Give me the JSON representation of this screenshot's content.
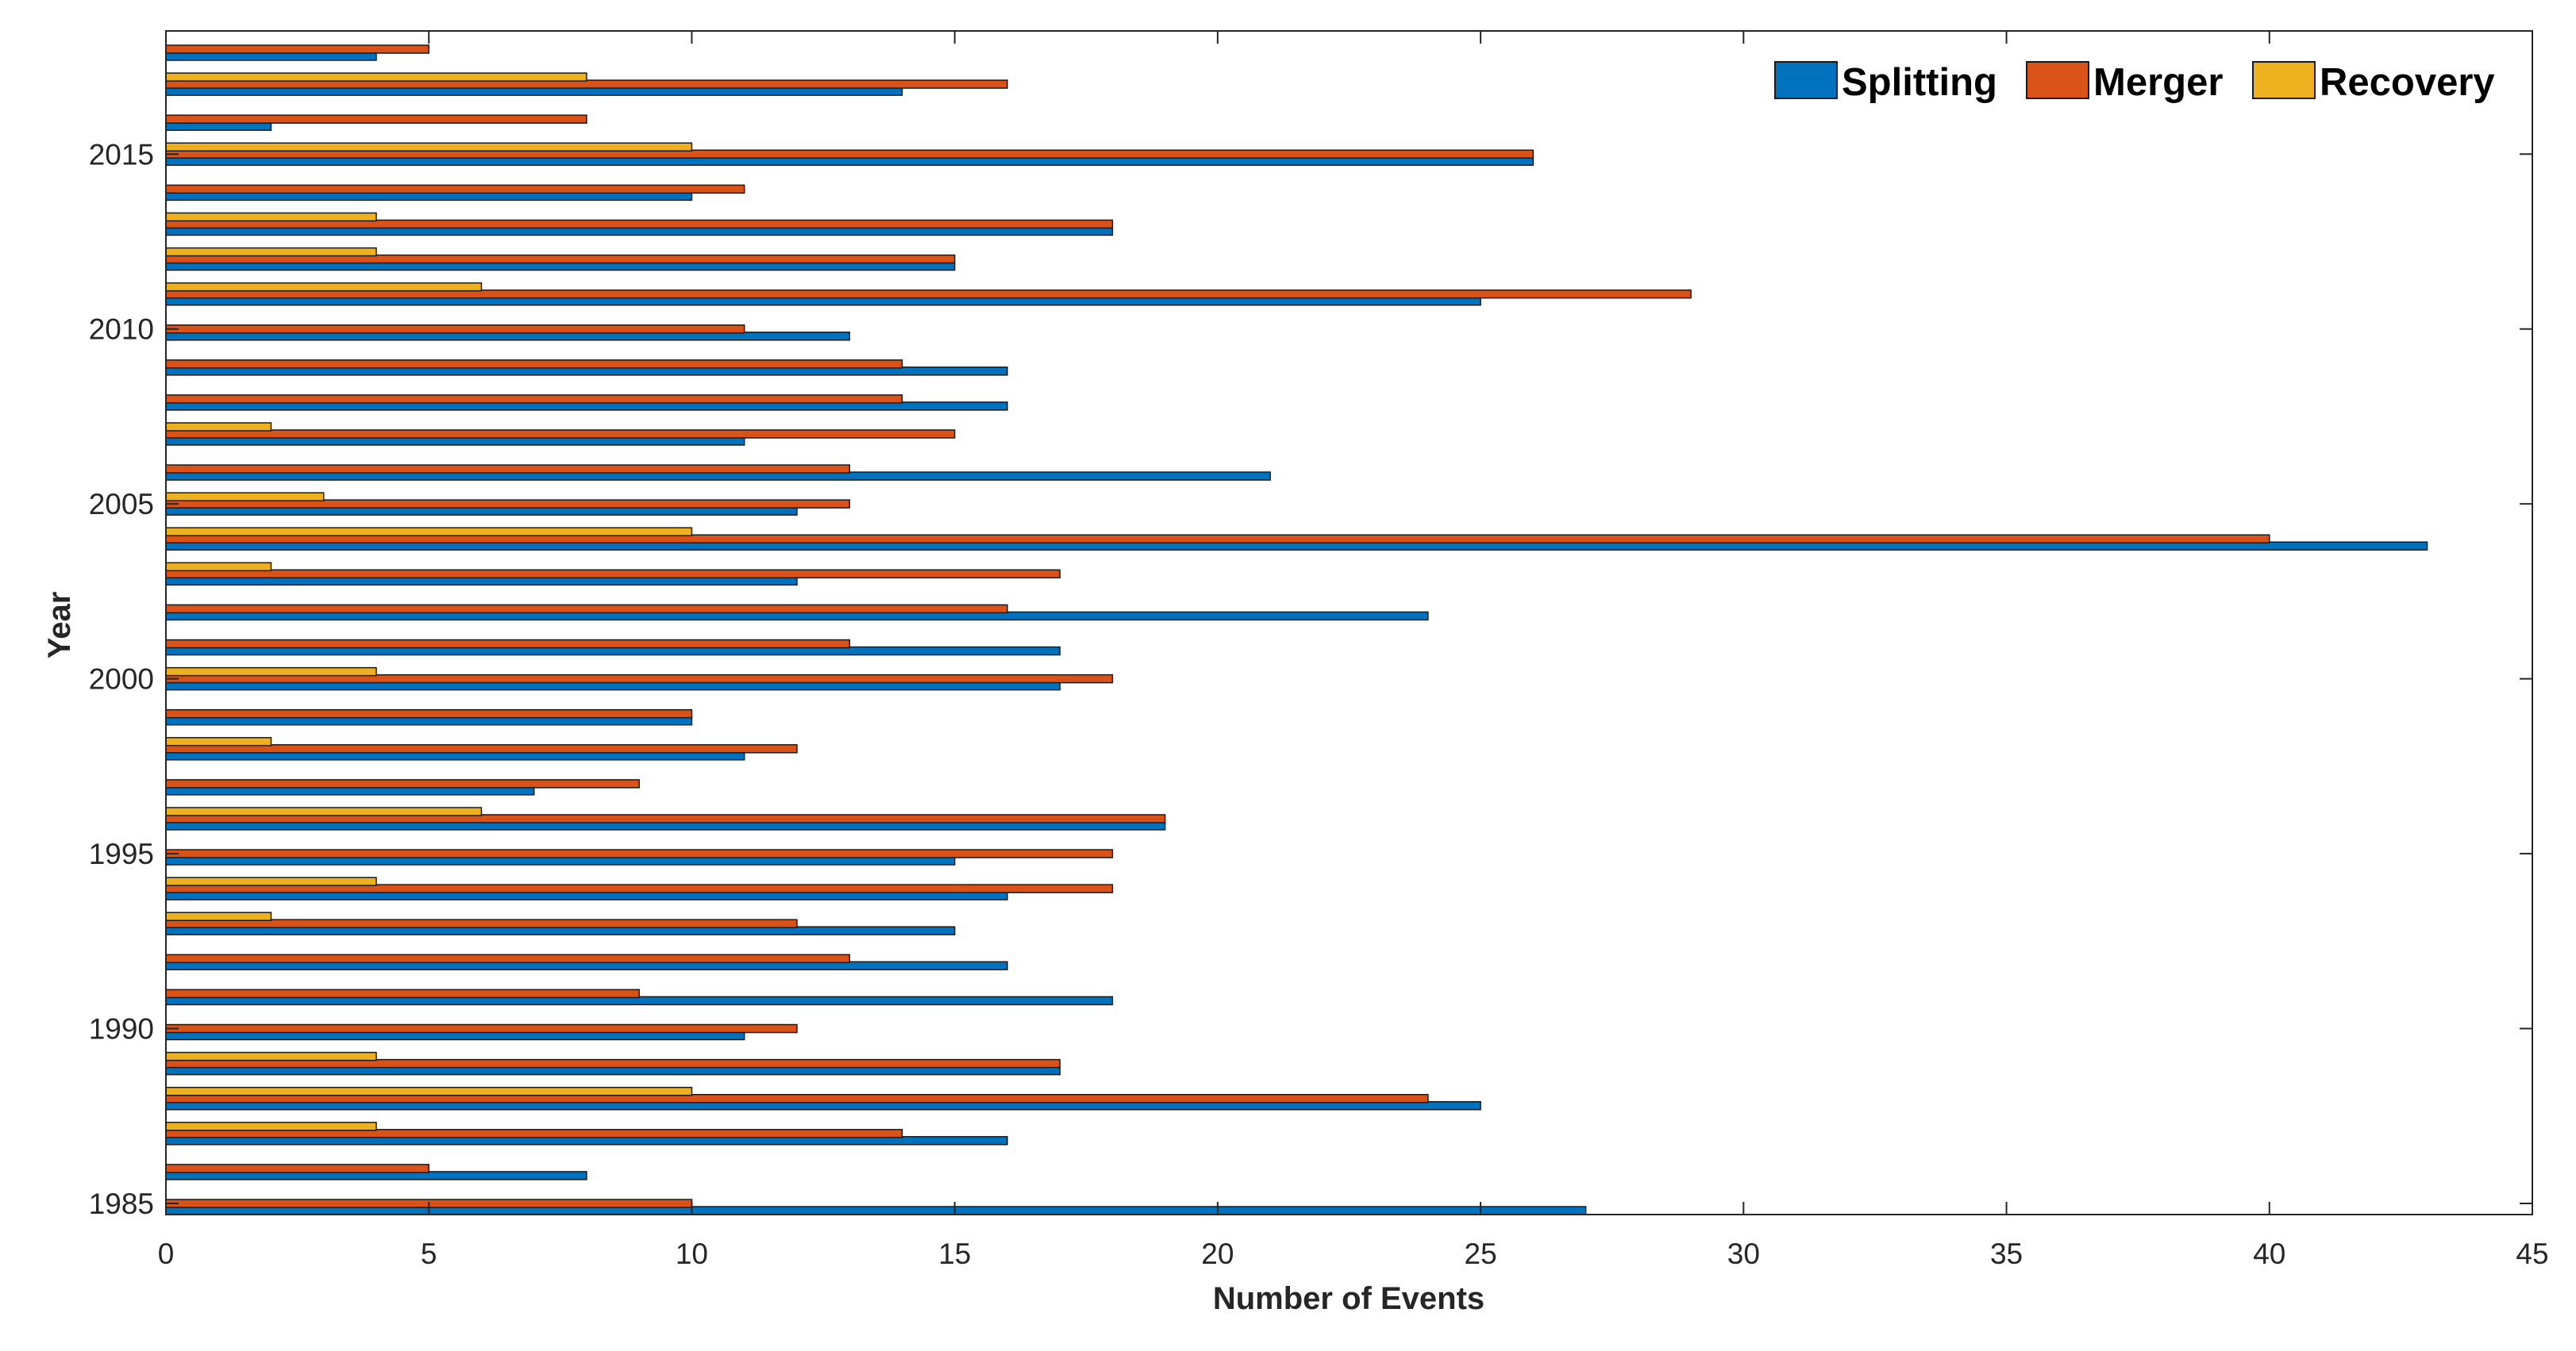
{
  "chart_data": {
    "type": "bar",
    "orientation": "horizontal",
    "title": "",
    "xlabel": "Number of Events",
    "ylabel": "Year",
    "xlim": [
      0,
      45
    ],
    "ylim": [
      1985,
      2018
    ],
    "x_ticks": [
      0,
      5,
      10,
      15,
      20,
      25,
      30,
      35,
      40,
      45
    ],
    "y_ticks": [
      1985,
      1990,
      1995,
      2000,
      2005,
      2010,
      2015
    ],
    "grid": false,
    "legend_position": "top-right",
    "categories": [
      1985,
      1986,
      1987,
      1988,
      1989,
      1990,
      1991,
      1992,
      1993,
      1994,
      1995,
      1996,
      1997,
      1998,
      1999,
      2000,
      2001,
      2002,
      2003,
      2004,
      2005,
      2006,
      2007,
      2008,
      2009,
      2010,
      2011,
      2012,
      2013,
      2014,
      2015,
      2016,
      2017,
      2018
    ],
    "series": [
      {
        "name": "Splitting",
        "color": "#0072BD",
        "values": [
          27,
          8,
          16,
          25,
          17,
          11,
          18,
          16,
          15,
          16,
          15,
          19,
          7,
          11,
          10,
          17,
          17,
          24,
          12,
          43,
          12,
          21,
          11,
          16,
          16,
          13,
          25,
          15,
          18,
          10,
          26,
          2,
          14,
          4
        ]
      },
      {
        "name": "Merger",
        "color": "#D95319",
        "values": [
          10,
          5,
          14,
          24,
          17,
          12,
          9,
          13,
          12,
          18,
          18,
          19,
          9,
          12,
          10,
          18,
          13,
          16,
          17,
          40,
          13,
          13,
          15,
          14,
          14,
          11,
          29,
          15,
          18,
          11,
          26,
          8,
          16,
          5
        ]
      },
      {
        "name": "Recovery",
        "color": "#EDB120",
        "values": [
          0,
          0,
          4,
          10,
          4,
          0,
          0,
          0,
          2,
          4,
          0,
          6,
          0,
          2,
          0,
          4,
          0,
          0,
          2,
          10,
          3,
          0,
          2,
          0,
          0,
          0,
          6,
          4,
          4,
          0,
          10,
          0,
          8,
          0
        ]
      }
    ]
  }
}
